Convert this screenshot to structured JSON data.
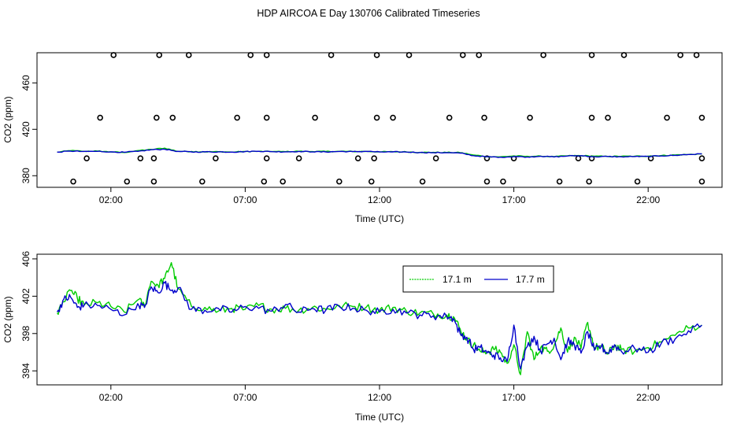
{
  "title": "HDP AIRCOA E  Day 130706  Calibrated Timeseries",
  "colors": {
    "green": "#00cc00",
    "blue": "#0000cc",
    "axis": "#000000"
  },
  "chart_data": [
    {
      "type": "scatter",
      "xlabel": "Time (UTC)",
      "ylabel": "CO2 (ppm)",
      "xlim": [
        -0.75,
        24.75
      ],
      "ylim": [
        370,
        486
      ],
      "xticks": [
        2,
        7,
        12,
        17,
        22
      ],
      "xtick_labels": [
        "02:00",
        "07:00",
        "12:00",
        "17:00",
        "22:00"
      ],
      "yticks": [
        380,
        420,
        460
      ],
      "ytick_labels": [
        "380",
        "420",
        "460"
      ],
      "grid": false,
      "circles": {
        "y382": [
          0.6,
          2.6,
          3.6,
          5.4,
          7.7,
          8.4,
          10.5,
          11.7,
          13.6,
          16.0,
          16.6,
          18.7,
          19.8,
          21.6,
          24.0
        ],
        "y399": [
          1.1,
          3.1,
          3.6,
          5.9,
          7.8,
          9.0,
          11.2,
          11.8,
          14.1,
          16.0,
          17.0,
          19.4,
          19.9,
          22.1,
          24.0
        ],
        "y430": [
          1.6,
          3.7,
          4.3,
          6.7,
          7.8,
          9.6,
          11.9,
          12.5,
          14.6,
          15.9,
          17.6,
          19.9,
          20.5,
          22.7,
          24.0
        ],
        "y484": [
          2.1,
          3.8,
          4.9,
          7.2,
          7.8,
          10.2,
          11.9,
          13.1,
          15.1,
          15.7,
          18.1,
          19.9,
          21.1,
          23.2,
          23.8
        ]
      },
      "series": [
        {
          "color": "#00cc00",
          "x": [
            0,
            0.5,
            1,
            1.5,
            2,
            2.5,
            3,
            3.5,
            4,
            4.5,
            5,
            5.5,
            6,
            6.5,
            7,
            7.5,
            8,
            8.5,
            9,
            9.5,
            10,
            10.5,
            11,
            11.5,
            12,
            12.5,
            13,
            13.5,
            14,
            14.5,
            15,
            15.5,
            16,
            16.5,
            17,
            17.5,
            18,
            18.5,
            19,
            19.5,
            20,
            20.5,
            21,
            21.5,
            22,
            22.5,
            23,
            23.5,
            24
          ],
          "y": [
            400.3,
            401.6,
            401.1,
            401.3,
            400.5,
            400.0,
            401.7,
            402.6,
            403.8,
            401.0,
            400.9,
            400.6,
            400.7,
            400.4,
            400.9,
            401.0,
            400.8,
            400.7,
            401.0,
            400.8,
            400.9,
            401.0,
            400.9,
            400.9,
            400.6,
            400.7,
            400.5,
            400.1,
            400.1,
            400.0,
            399.9,
            397.9,
            396.5,
            396.3,
            397.0,
            396.7,
            396.9,
            396.4,
            397.2,
            397.3,
            396.8,
            396.6,
            396.7,
            396.8,
            396.9,
            397.4,
            397.9,
            398.3,
            398.8
          ]
        },
        {
          "color": "#0000cc",
          "x": [
            0,
            0.5,
            1,
            1.5,
            2,
            2.5,
            3,
            3.5,
            4,
            4.5,
            5,
            5.5,
            6,
            6.5,
            7,
            7.5,
            8,
            8.5,
            9,
            9.5,
            10,
            10.5,
            11,
            11.5,
            12,
            12.5,
            13,
            13.5,
            14,
            14.5,
            15,
            15.5,
            16,
            16.5,
            17,
            17.5,
            18,
            18.5,
            19,
            19.5,
            20,
            20.5,
            21,
            21.5,
            22,
            22.5,
            23,
            23.5,
            24
          ],
          "y": [
            400.3,
            401.2,
            400.9,
            401.0,
            400.6,
            400.2,
            401.0,
            402.4,
            402.8,
            401.0,
            400.5,
            400.5,
            400.6,
            400.4,
            400.8,
            401.1,
            400.7,
            400.6,
            401.0,
            400.6,
            400.5,
            400.9,
            400.7,
            401.0,
            400.5,
            400.5,
            400.4,
            400.0,
            399.9,
            399.9,
            399.5,
            397.3,
            396.3,
            396.0,
            396.5,
            396.2,
            396.8,
            396.2,
            397.0,
            397.3,
            396.4,
            396.5,
            396.3,
            396.5,
            396.6,
            397.1,
            397.6,
            398.3,
            398.8
          ]
        }
      ]
    },
    {
      "type": "line",
      "xlabel": "Time (UTC)",
      "ylabel": "CO2 (ppm)",
      "xlim": [
        -0.75,
        24.75
      ],
      "ylim": [
        392.5,
        406.5
      ],
      "xticks": [
        2,
        7,
        12,
        17,
        22
      ],
      "xtick_labels": [
        "02:00",
        "07:00",
        "12:00",
        "17:00",
        "22:00"
      ],
      "yticks": [
        394,
        398,
        402,
        406
      ],
      "ytick_labels": [
        "394",
        "398",
        "402",
        "406"
      ],
      "grid": false,
      "legend": "top-right",
      "series": [
        {
          "name": "17.1 m",
          "color": "#00cc00",
          "x": [
            0,
            0.25,
            0.5,
            0.75,
            1,
            1.5,
            2,
            2.5,
            3,
            3.25,
            3.5,
            3.75,
            4,
            4.25,
            4.5,
            5,
            5.5,
            6,
            6.5,
            7,
            7.5,
            8,
            8.5,
            9,
            9.5,
            10,
            10.5,
            11,
            11.5,
            12,
            12.5,
            13,
            13.5,
            14,
            14.5,
            14.75,
            15,
            15.25,
            15.5,
            15.75,
            16,
            16.25,
            16.5,
            16.75,
            17,
            17.25,
            17.5,
            17.75,
            18,
            18.25,
            18.5,
            18.75,
            19,
            19.25,
            19.5,
            19.75,
            20,
            20.25,
            20.5,
            20.75,
            21,
            21.5,
            22,
            22.5,
            23,
            23.5,
            24
          ],
          "y": [
            400.2,
            401.4,
            402.6,
            401.8,
            401.1,
            401.3,
            400.9,
            400.3,
            401.6,
            401.0,
            403.6,
            403.2,
            403.9,
            405.6,
            402.8,
            400.9,
            400.8,
            400.4,
            400.7,
            400.6,
            401.0,
            400.6,
            400.7,
            400.5,
            400.8,
            400.6,
            401.0,
            400.9,
            400.8,
            400.5,
            400.8,
            400.4,
            400.2,
            400.1,
            400.0,
            399.8,
            398.5,
            397.3,
            396.8,
            396.1,
            396.0,
            396.3,
            396.0,
            394.8,
            396.8,
            393.6,
            398.2,
            395.2,
            396.5,
            396.1,
            396.7,
            398.6,
            396.0,
            397.6,
            396.4,
            399.2,
            396.5,
            396.6,
            395.8,
            396.7,
            396.3,
            396.1,
            396.5,
            397.1,
            397.8,
            398.6,
            398.9
          ]
        },
        {
          "name": "17.7 m",
          "color": "#0000cc",
          "x": [
            0,
            0.25,
            0.5,
            0.75,
            1,
            1.5,
            2,
            2.5,
            3,
            3.25,
            3.5,
            3.75,
            4,
            4.25,
            4.5,
            5,
            5.5,
            6,
            6.5,
            7,
            7.5,
            8,
            8.5,
            9,
            9.5,
            10,
            10.5,
            11,
            11.5,
            12,
            12.5,
            13,
            13.5,
            14,
            14.5,
            14.75,
            15,
            15.25,
            15.5,
            15.75,
            16,
            16.25,
            16.5,
            16.75,
            17,
            17.25,
            17.5,
            17.75,
            18,
            18.25,
            18.5,
            18.75,
            19,
            19.25,
            19.5,
            19.75,
            20,
            20.25,
            20.5,
            20.75,
            21,
            21.5,
            22,
            22.5,
            23,
            23.5,
            24
          ],
          "y": [
            400.3,
            401.7,
            401.9,
            400.8,
            401.0,
            401.0,
            400.6,
            400.0,
            401.2,
            400.8,
            403.0,
            402.4,
            403.4,
            402.6,
            402.9,
            400.6,
            400.5,
            400.7,
            400.3,
            400.9,
            400.7,
            400.4,
            401.1,
            400.3,
            400.7,
            400.5,
            400.9,
            400.7,
            400.5,
            400.3,
            400.6,
            400.2,
            400.0,
            399.9,
            399.8,
            399.6,
            398.0,
            397.6,
            396.3,
            396.5,
            395.9,
            395.7,
            395.4,
            395.0,
            398.9,
            394.2,
            396.6,
            397.7,
            396.1,
            396.9,
            397.5,
            395.2,
            397.2,
            396.8,
            395.9,
            398.2,
            396.2,
            396.6,
            395.9,
            396.8,
            396.1,
            396.4,
            396.0,
            397.0,
            397.4,
            398.3,
            398.9
          ]
        }
      ]
    }
  ]
}
